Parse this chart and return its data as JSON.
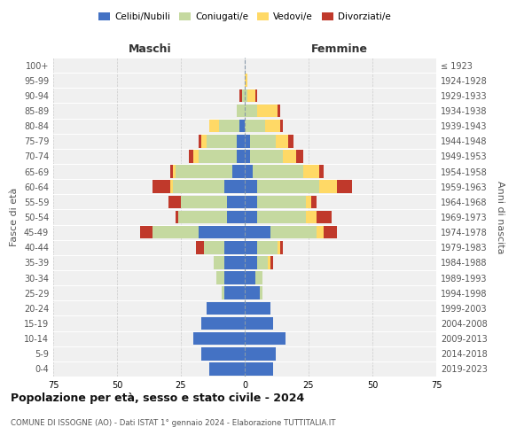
{
  "age_groups": [
    "0-4",
    "5-9",
    "10-14",
    "15-19",
    "20-24",
    "25-29",
    "30-34",
    "35-39",
    "40-44",
    "45-49",
    "50-54",
    "55-59",
    "60-64",
    "65-69",
    "70-74",
    "75-79",
    "80-84",
    "85-89",
    "90-94",
    "95-99",
    "100+"
  ],
  "birth_years": [
    "2019-2023",
    "2014-2018",
    "2009-2013",
    "2004-2008",
    "1999-2003",
    "1994-1998",
    "1989-1993",
    "1984-1988",
    "1979-1983",
    "1974-1978",
    "1969-1973",
    "1964-1968",
    "1959-1963",
    "1954-1958",
    "1949-1953",
    "1944-1948",
    "1939-1943",
    "1934-1938",
    "1929-1933",
    "1924-1928",
    "≤ 1923"
  ],
  "males": {
    "celibi": [
      14,
      17,
      20,
      17,
      15,
      8,
      8,
      8,
      8,
      18,
      7,
      7,
      8,
      5,
      3,
      3,
      2,
      0,
      0,
      0,
      0
    ],
    "coniugati": [
      0,
      0,
      0,
      0,
      0,
      1,
      3,
      4,
      8,
      18,
      19,
      18,
      20,
      22,
      15,
      12,
      8,
      3,
      1,
      0,
      0
    ],
    "vedovi": [
      0,
      0,
      0,
      0,
      0,
      0,
      0,
      0,
      0,
      0,
      0,
      0,
      1,
      1,
      2,
      2,
      4,
      0,
      0,
      0,
      0
    ],
    "divorziati": [
      0,
      0,
      0,
      0,
      0,
      0,
      0,
      0,
      3,
      5,
      1,
      5,
      7,
      1,
      2,
      1,
      0,
      0,
      1,
      0,
      0
    ]
  },
  "females": {
    "nubili": [
      11,
      12,
      16,
      11,
      10,
      6,
      4,
      5,
      5,
      10,
      5,
      5,
      5,
      3,
      2,
      2,
      0,
      0,
      0,
      0,
      0
    ],
    "coniugate": [
      0,
      0,
      0,
      0,
      0,
      1,
      3,
      4,
      8,
      18,
      19,
      19,
      24,
      20,
      13,
      10,
      8,
      5,
      1,
      0,
      0
    ],
    "vedove": [
      0,
      0,
      0,
      0,
      0,
      0,
      0,
      1,
      1,
      3,
      4,
      2,
      7,
      6,
      5,
      5,
      6,
      8,
      3,
      1,
      0
    ],
    "divorziate": [
      0,
      0,
      0,
      0,
      0,
      0,
      0,
      1,
      1,
      5,
      6,
      2,
      6,
      2,
      3,
      2,
      1,
      1,
      1,
      0,
      0
    ]
  },
  "colors": {
    "celibi": "#4472C4",
    "coniugati": "#C5D9A0",
    "vedovi": "#FFD966",
    "divorziati": "#C0392B"
  },
  "legend_labels": [
    "Celibi/Nubili",
    "Coniugati/e",
    "Vedovi/e",
    "Divorziati/e"
  ],
  "title": "Popolazione per età, sesso e stato civile - 2024",
  "subtitle": "COMUNE DI ISSOGNE (AO) - Dati ISTAT 1° gennaio 2024 - Elaborazione TUTTITALIA.IT",
  "xlabel_left": "Maschi",
  "xlabel_right": "Femmine",
  "ylabel_left": "Fasce di età",
  "ylabel_right": "Anni di nascita",
  "xlim": 75,
  "bg_color": "#FFFFFF",
  "plot_bg_color": "#F0F0F0",
  "grid_color": "#CCCCCC"
}
